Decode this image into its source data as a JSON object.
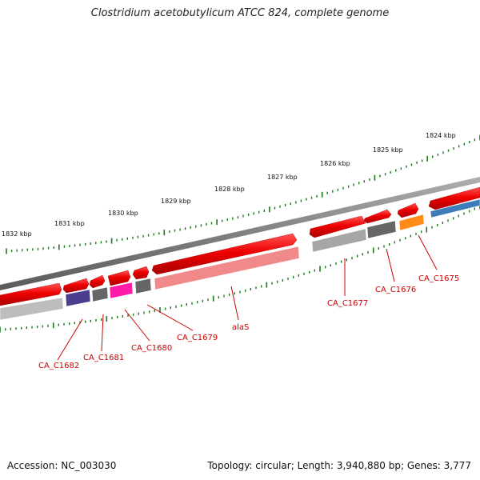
{
  "title": "Clostridium acetobutylicum ATCC 824, complete genome",
  "footer": {
    "accession_label": "Accession:",
    "accession": "NC_003030",
    "topology_label": "Topology:",
    "topology": "circular",
    "length_label": "Length:",
    "length": "3,940,880 bp",
    "genes_label": "Genes:",
    "genes": "3,777"
  },
  "kbp_markers": [
    "1824 kbp",
    "1825 kbp",
    "1826 kbp",
    "1827 kbp",
    "1828 kbp",
    "1829 kbp",
    "1830 kbp",
    "1831 kbp",
    "1832 kbp"
  ],
  "genes": [
    {
      "label": "CA_C1675",
      "color": "#ff8c1a"
    },
    {
      "label": "CA_C1676",
      "color": "#666666"
    },
    {
      "label": "CA_C1677",
      "color": "#a0a0a0"
    },
    {
      "label": "alaS",
      "color": "#f08080"
    },
    {
      "label": "CA_C1679",
      "color": "#666666"
    },
    {
      "label": "CA_C1680",
      "color": "#ff1aa8"
    },
    {
      "label": "CA_C1681",
      "color": "#666666"
    },
    {
      "label": "CA_C1682",
      "color": "#4b3d8f"
    }
  ],
  "colors": {
    "cds_strand": "#ee0000",
    "backbone": "#7a7a7a",
    "scale_ticks": "#1a7a1a",
    "gene_label": "#cc0000",
    "blue_feature": "#3d7cb8"
  }
}
